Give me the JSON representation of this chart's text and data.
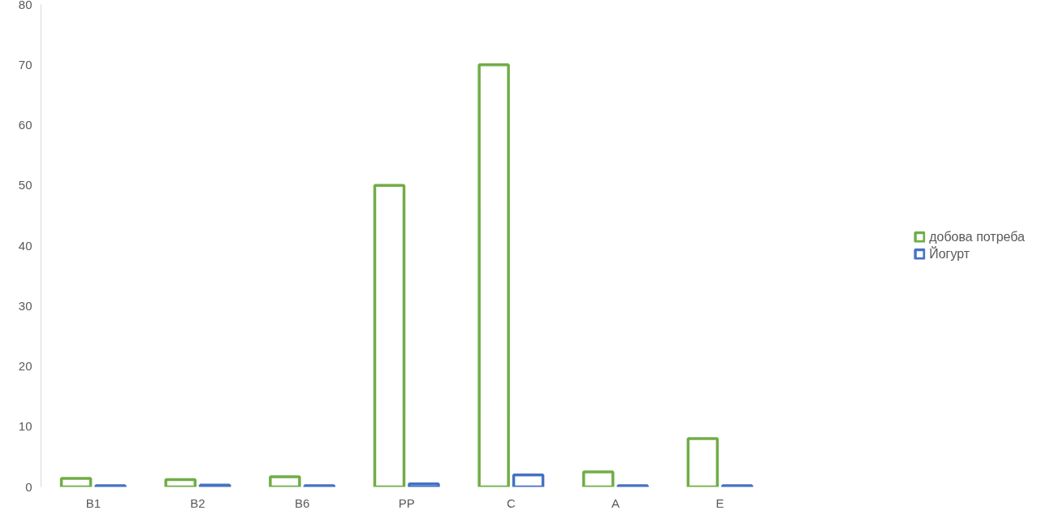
{
  "chart_data": {
    "type": "bar",
    "categories": [
      "B1",
      "B2",
      "B6",
      "PP",
      "C",
      "A",
      "E"
    ],
    "series": [
      {
        "name": "добова потреба",
        "color": "#70ad47",
        "values": [
          1.4,
          1.2,
          1.7,
          50,
          70,
          2.5,
          8
        ]
      },
      {
        "name": "Йогурт",
        "color": "#4472c4",
        "values": [
          0.2,
          0.3,
          0.2,
          0.5,
          2,
          0.2,
          0.2
        ]
      }
    ],
    "ylim": [
      0,
      80
    ],
    "yticks": [
      0,
      10,
      20,
      30,
      40,
      50,
      60,
      70,
      80
    ],
    "grid": false,
    "legend": "right"
  }
}
